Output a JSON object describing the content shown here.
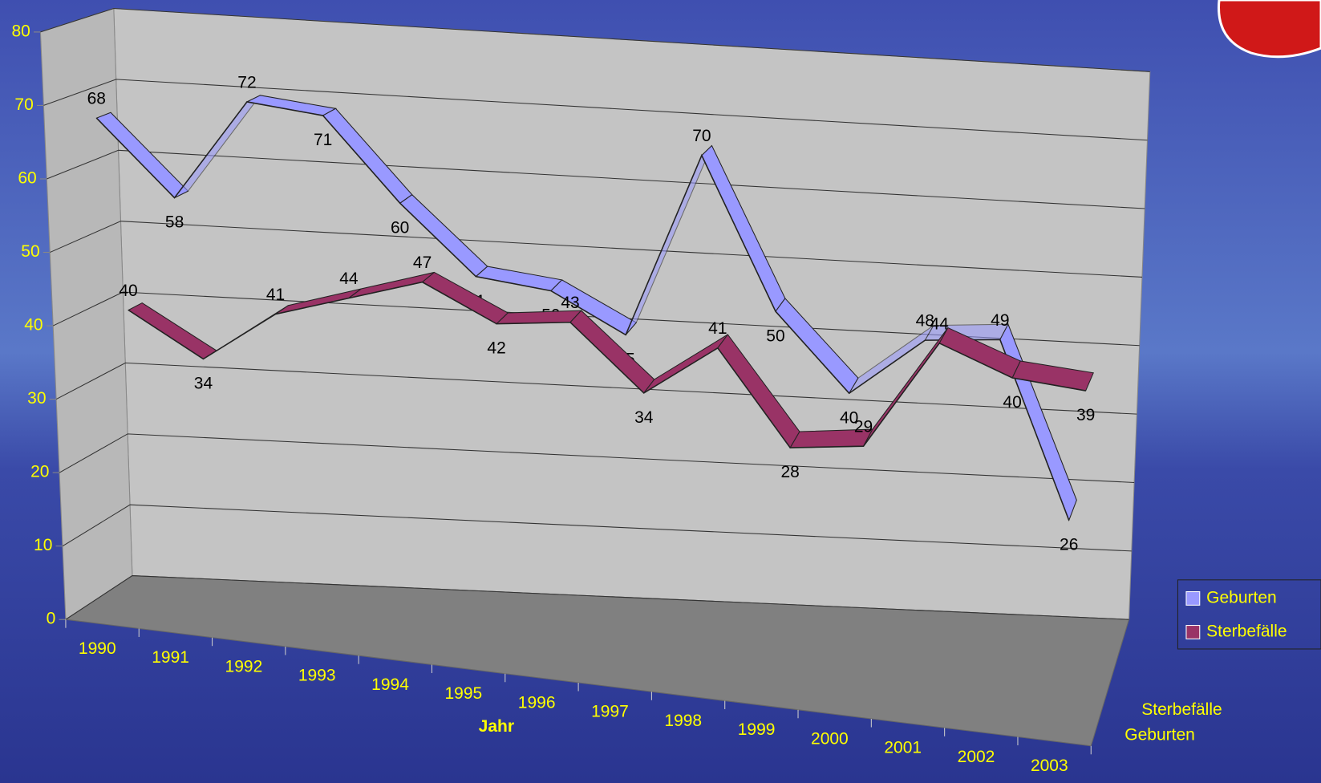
{
  "chart_data": {
    "type": "line3d",
    "categories": [
      "1990",
      "1991",
      "1992",
      "1993",
      "1994",
      "1995",
      "1996",
      "1997",
      "1998",
      "1999",
      "2000",
      "2001",
      "2002",
      "2003"
    ],
    "x_label": "Jahr",
    "series": [
      {
        "name": "Geburten",
        "color": "#9999ff",
        "values": [
          68,
          58,
          72,
          71,
          60,
          51,
          50,
          45,
          70,
          50,
          40,
          48,
          49,
          26
        ]
      },
      {
        "name": "Sterbefälle",
        "color": "#993366",
        "values": [
          40,
          34,
          41,
          44,
          47,
          42,
          43,
          34,
          41,
          28,
          29,
          44,
          40,
          39
        ]
      }
    ],
    "ylim": [
      0,
      80
    ],
    "yticks": [
      0,
      10,
      20,
      30,
      40,
      50,
      60,
      70,
      80
    ],
    "grid": true,
    "legend": "right"
  }
}
